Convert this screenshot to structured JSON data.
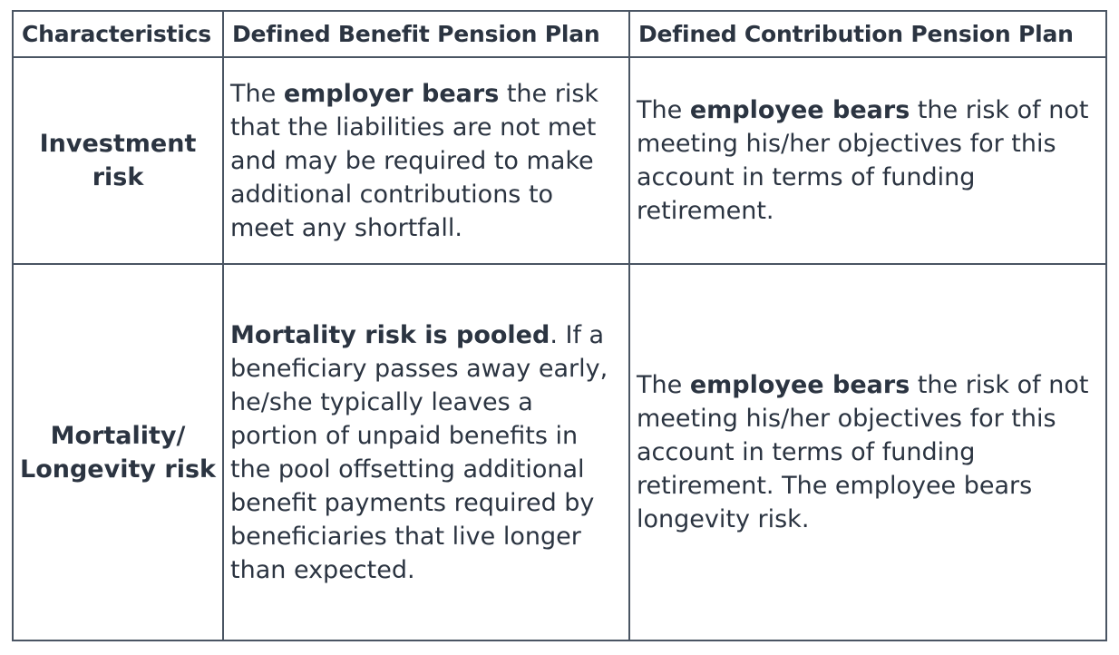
{
  "table": {
    "headers": [
      "Characteristics",
      "Defined Benefit Pension Plan",
      "Defined Contribution Pension Plan"
    ],
    "rows": [
      {
        "label": "Investment risk",
        "db": {
          "pre": "The ",
          "bold": "employer bears",
          "post": " the risk that the liabilities are not met and may be required to make additional contributions to meet any shortfall."
        },
        "dc": {
          "pre": "The ",
          "bold": "employee bears",
          "post": " the risk of not meeting his/her objectives for this account in terms of funding retirement."
        }
      },
      {
        "label": "Mortality/ Longevity risk",
        "db": {
          "pre": "",
          "bold": "Mortality risk is pooled",
          "post": ". If a beneficiary passes away early, he/she typically leaves a portion of unpaid benefits in the pool offsetting additional benefit payments required by beneficiaries that live longer than expected."
        },
        "dc": {
          "pre": "The ",
          "bold": "employee bears",
          "post": " the risk of not meeting his/her objectives for this account in terms of funding retirement. The employee bears longevity risk."
        }
      }
    ]
  }
}
